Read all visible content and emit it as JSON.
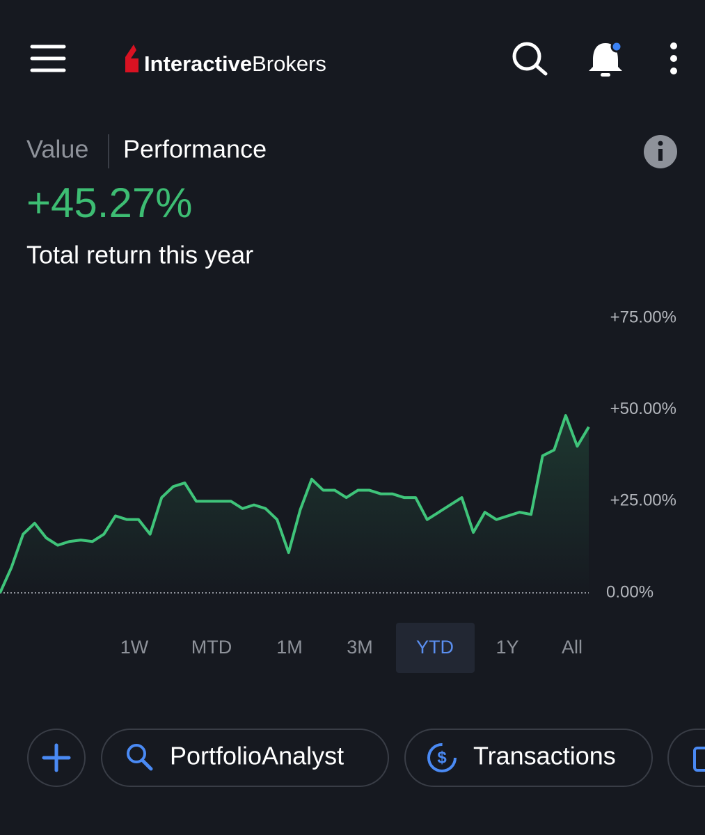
{
  "header": {
    "logo_bold": "Interactive",
    "logo_light": "Brokers"
  },
  "tabs": [
    "Value",
    "Performance"
  ],
  "return_value": "+45.27%",
  "return_caption": "Total return this year",
  "chart_data": {
    "type": "line",
    "color": "#3fc47a",
    "values": [
      0,
      7,
      16,
      19,
      15,
      13,
      14,
      14.4,
      14,
      16,
      21,
      20,
      20,
      16,
      26,
      29,
      30,
      25,
      25,
      25,
      25,
      23,
      24,
      23,
      20,
      11,
      22.6,
      31,
      28,
      28,
      26,
      28,
      28,
      27,
      27,
      26,
      26,
      20,
      22,
      24,
      26,
      16.5,
      22,
      20,
      21,
      22,
      21.4,
      37.4,
      39,
      48.4,
      40,
      45.27
    ],
    "ylim": [
      0,
      75
    ],
    "yticks": [
      {
        "value": 0,
        "label": "0.00%"
      },
      {
        "value": 25,
        "label": "+25.00%"
      },
      {
        "value": 50,
        "label": "+50.00%"
      },
      {
        "value": 75,
        "label": "+75.00%"
      }
    ]
  },
  "ranges": [
    "1W",
    "MTD",
    "1M",
    "3M",
    "YTD",
    "1Y",
    "All"
  ],
  "active_range": 4,
  "chips": [
    "PortfolioAnalyst",
    "Transactions"
  ]
}
